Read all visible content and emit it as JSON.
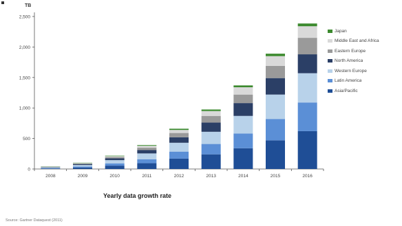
{
  "chart_data": {
    "type": "bar",
    "stacked": true,
    "unit": "TB",
    "xlabel": "Yearly data growth rate",
    "categories": [
      "2008",
      "2009",
      "2010",
      "2011",
      "2012",
      "2013",
      "2014",
      "2015",
      "2016"
    ],
    "ylim": [
      0,
      2500
    ],
    "yticks": [
      "0",
      "500",
      "1,000",
      "1,500",
      "2,000",
      "2,500"
    ],
    "series": [
      {
        "name": "Asia/Pacific",
        "color": "#1f4e96",
        "values": [
          10,
          25,
          55,
          95,
          170,
          240,
          340,
          470,
          620
        ]
      },
      {
        "name": "Latin America",
        "color": "#5b8fd6",
        "values": [
          5,
          15,
          35,
          65,
          115,
          170,
          240,
          350,
          470
        ]
      },
      {
        "name": "Western Europe",
        "color": "#b8d2ea",
        "values": [
          10,
          25,
          55,
          95,
          145,
          200,
          290,
          400,
          480
        ]
      },
      {
        "name": "North America",
        "color": "#2b3f66",
        "values": [
          6,
          15,
          30,
          55,
          90,
          150,
          210,
          270,
          310
        ]
      },
      {
        "name": "Eastern Europe",
        "color": "#9a9a9a",
        "values": [
          5,
          10,
          20,
          40,
          70,
          110,
          140,
          200,
          270
        ]
      },
      {
        "name": "Middle East and Africa",
        "color": "#d9d9d9",
        "values": [
          4,
          8,
          15,
          30,
          50,
          80,
          120,
          160,
          190
        ]
      },
      {
        "name": "Japan",
        "color": "#3c8a2e",
        "values": [
          3,
          5,
          8,
          12,
          20,
          25,
          30,
          40,
          45
        ]
      }
    ],
    "grid": false,
    "legend_position": "right"
  },
  "source_text": "Source: Gartner Dataquest (2011)"
}
